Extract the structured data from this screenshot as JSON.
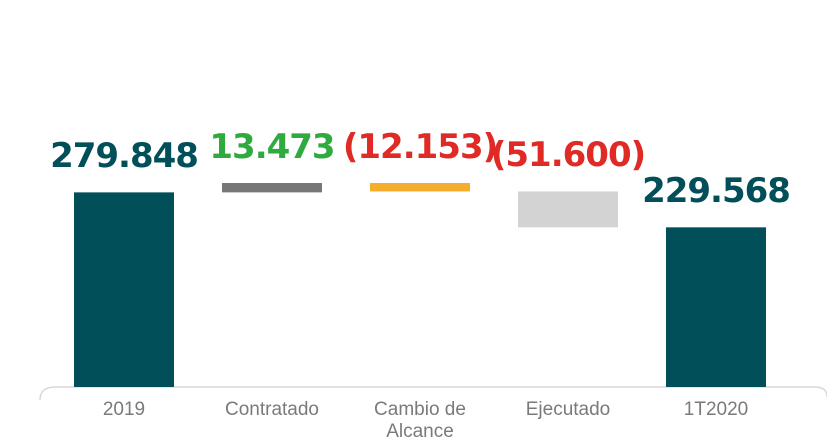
{
  "chart_data": {
    "type": "waterfall",
    "categories": [
      "2019",
      "Contratado",
      "Cambio de Alcance",
      "Ejecutado",
      "1T2020"
    ],
    "values": [
      279848,
      13473,
      -12153,
      -51600,
      229568
    ],
    "value_labels": [
      "279.848",
      "13.473",
      "(12.153)",
      "(51.600)",
      "229.568"
    ],
    "colors": [
      "#004f59",
      "#777777",
      "#f5ae2b",
      "#d3d3d3",
      "#004f59"
    ],
    "label_colors": [
      "#004f59",
      "#2eaa3f",
      "#e02a26",
      "#e02a26",
      "#004f59"
    ]
  }
}
